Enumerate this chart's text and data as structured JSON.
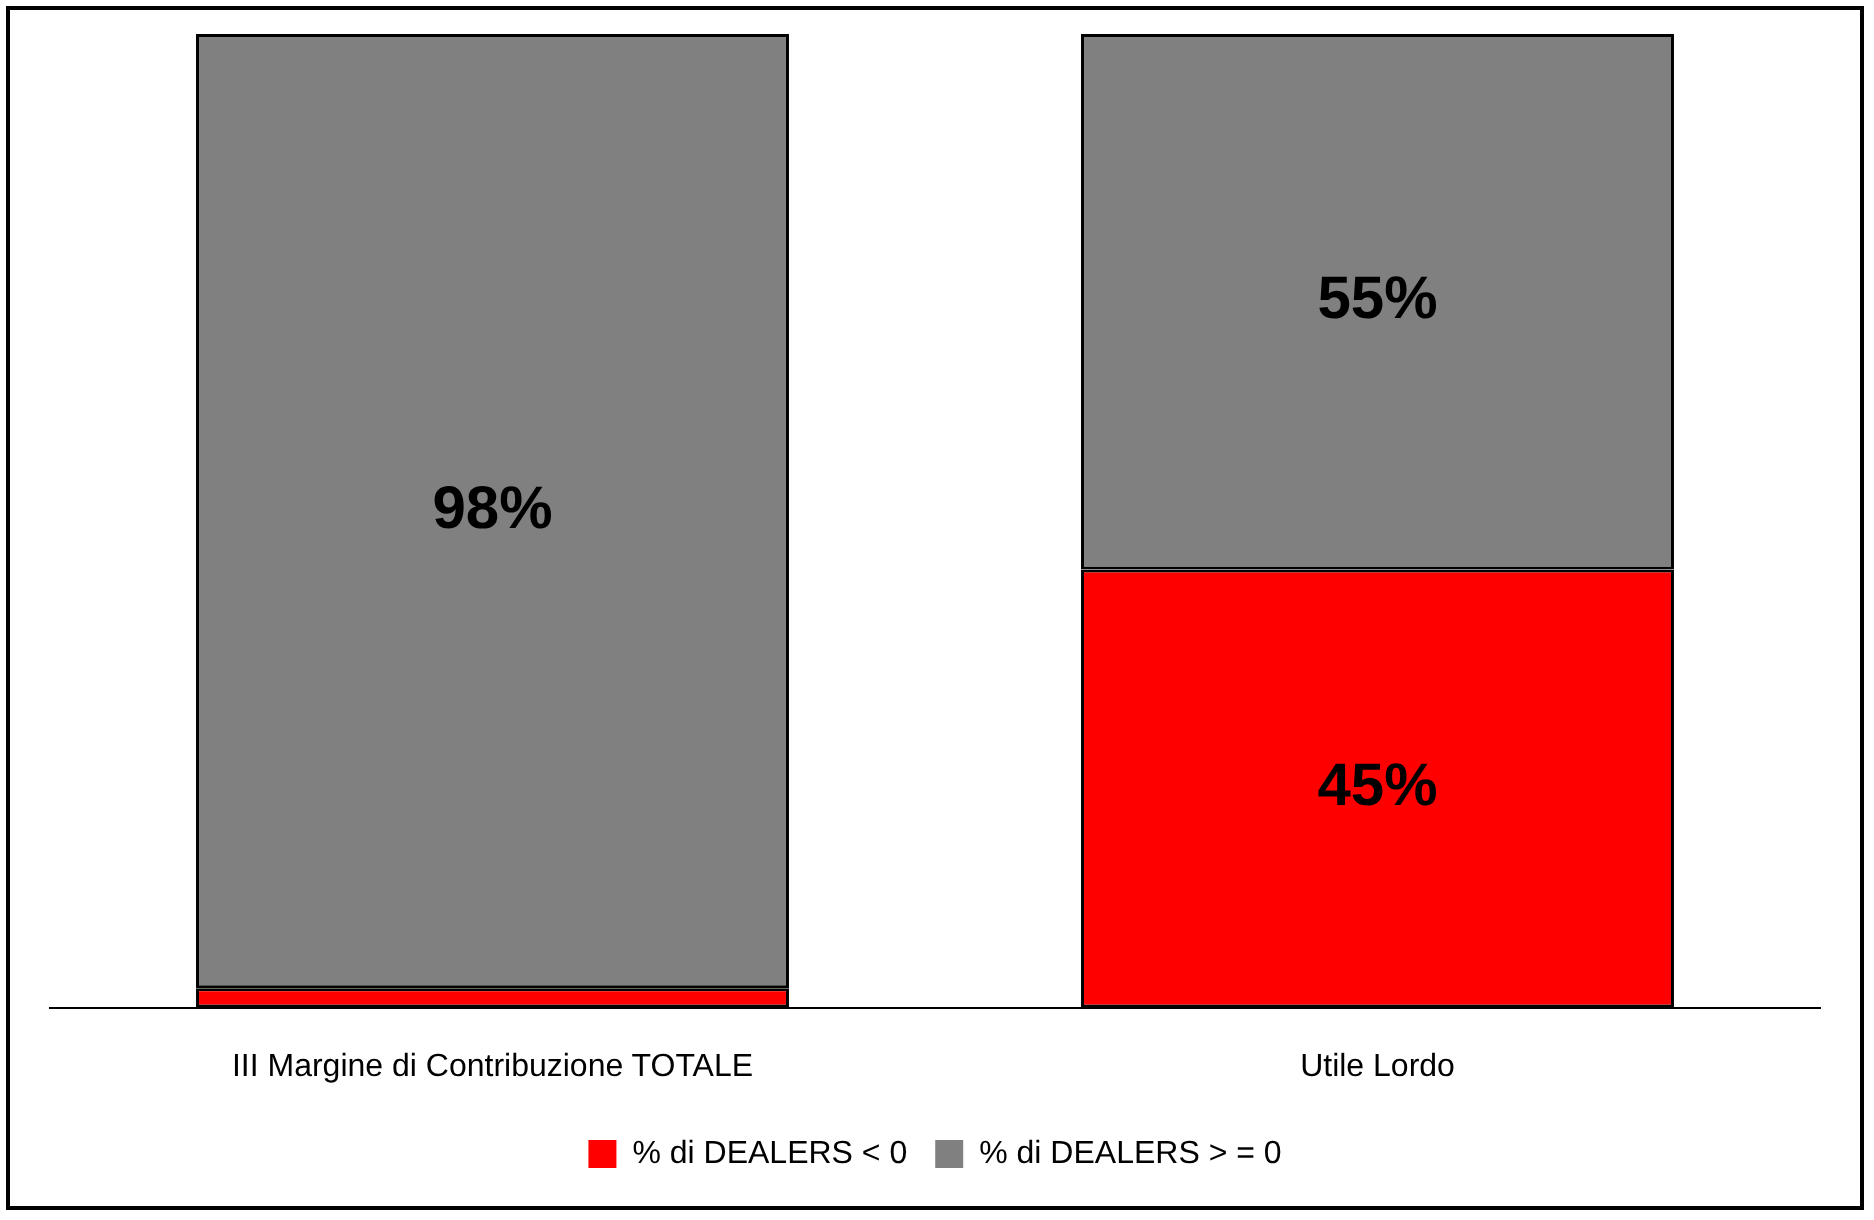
{
  "chart_data": {
    "type": "bar",
    "stacked": true,
    "categories": [
      "III Margine di Contribuzione TOTALE",
      "Utile Lordo"
    ],
    "series": [
      {
        "name": "% di DEALERS < 0",
        "color": "#ff0000",
        "values": [
          2,
          45
        ],
        "value_labels": [
          null,
          "45%"
        ]
      },
      {
        "name": "% di DEALERS > = 0",
        "color": "#808080",
        "values": [
          98,
          55
        ],
        "value_labels": [
          "98%",
          "55%"
        ]
      }
    ],
    "legend": "bottom",
    "grid": false
  }
}
